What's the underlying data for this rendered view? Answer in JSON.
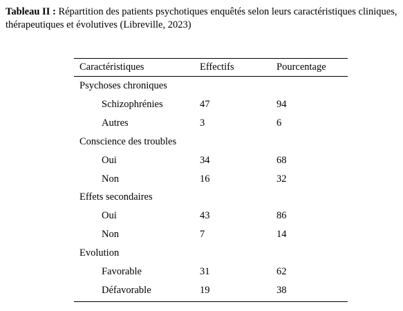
{
  "caption": {
    "label": "Tableau II :",
    "text": "Répartition des patients psychotiques enquêtés selon leurs caractéristiques cliniques, thérapeutiques et évolutives (Libreville, 2023)"
  },
  "table": {
    "header": [
      "Caractéristiques",
      "Effectifs",
      "Pourcentage"
    ],
    "groups": [
      {
        "title": "Psychoses chroniques",
        "rows": [
          [
            "Schizophrénies",
            47,
            94
          ],
          [
            "Autres",
            3,
            6
          ]
        ]
      },
      {
        "title": "Conscience des troubles",
        "rows": [
          [
            "Oui",
            34,
            68
          ],
          [
            "Non",
            16,
            32
          ]
        ]
      },
      {
        "title": "Effets secondaires",
        "rows": [
          [
            "Oui",
            43,
            86
          ],
          [
            "Non",
            7,
            14
          ]
        ]
      },
      {
        "title": "Evolution",
        "rows": [
          [
            "Favorable",
            31,
            62
          ],
          [
            "Défavorable",
            19,
            38
          ]
        ]
      }
    ]
  }
}
